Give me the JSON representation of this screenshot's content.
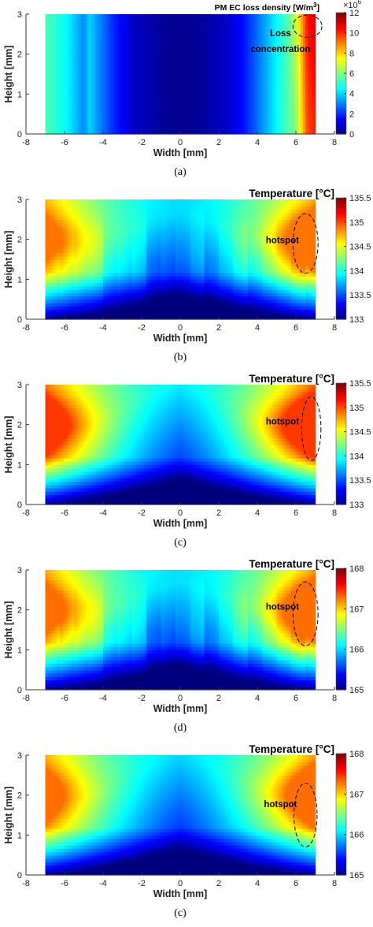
{
  "colors": {
    "colormap": [
      "#00007f",
      "#0000ff",
      "#007fff",
      "#00ffff",
      "#7fff7f",
      "#ffff00",
      "#ff7f00",
      "#ff0000",
      "#7f0000"
    ]
  },
  "chart_data": [
    {
      "type": "heatmap",
      "caption": "(a)",
      "title": "PM EC loss density [W/m",
      "title_sup": "3",
      "title_end": "]",
      "xlabel": "Width [mm]",
      "ylabel": "Height [mm]",
      "xlim": [
        -8,
        8
      ],
      "ylim": [
        0,
        3
      ],
      "xticks": [
        -8,
        -6,
        -4,
        -2,
        0,
        2,
        4,
        6,
        8
      ],
      "yticks": [
        0,
        1,
        2,
        3
      ],
      "data_extent_x": [
        -7,
        7
      ],
      "colorbar": {
        "min": 0,
        "max": 12,
        "ticks": [
          0,
          2,
          4,
          6,
          8,
          10,
          12
        ],
        "exponent_label": "×10",
        "exponent_sup": "6"
      },
      "field": {
        "kind": "lateral",
        "x_profile": [
          -7,
          -6,
          -5.5,
          -5,
          -4.7,
          -4.3,
          -3.5,
          -2.5,
          -1,
          0,
          1,
          2.5,
          3.3,
          4,
          4.5,
          5,
          5.5,
          6,
          6.3,
          6.6,
          7
        ],
        "v_profile": [
          5.4,
          4.6,
          3.9,
          3.1,
          4.0,
          3.3,
          2.0,
          0.9,
          0.3,
          0.2,
          0.3,
          0.9,
          1.7,
          2.8,
          3.6,
          4.5,
          5.3,
          6.4,
          8.2,
          10.0,
          10.5
        ]
      },
      "annotations": [
        {
          "text": "Loss",
          "x": 5.2,
          "y": 2.45
        },
        {
          "text": "concentration",
          "x": 5.2,
          "y": 2.05
        }
      ],
      "ellipse": {
        "cx": 6.6,
        "cy": 2.7,
        "rx": 0.75,
        "ry": 0.28
      }
    },
    {
      "type": "heatmap",
      "caption": "(b)",
      "title": "Temperature [°C]",
      "xlabel": "Width [mm]",
      "ylabel": "Height [mm]",
      "xlim": [
        -8,
        8
      ],
      "ylim": [
        0,
        3
      ],
      "xticks": [
        -8,
        -6,
        -4,
        -2,
        0,
        2,
        4,
        6,
        8
      ],
      "yticks": [
        0,
        1,
        2,
        3
      ],
      "data_extent_x": [
        -7,
        7
      ],
      "colorbar": {
        "min": 133,
        "max": 135.5,
        "ticks": [
          133,
          133.5,
          134,
          134.5,
          135,
          135.5
        ]
      },
      "field": {
        "kind": "thermal",
        "base": 133.0,
        "span": 1.9,
        "edge_weight": 1.0,
        "center_rise": 1.1,
        "noise": 0.12,
        "hot_left": 0.35,
        "hot_right": 0.55
      },
      "annotations": [
        {
          "text": "hotspot",
          "x": 5.3,
          "y": 1.9
        }
      ],
      "ellipse": {
        "cx": 6.5,
        "cy": 1.9,
        "rx": 0.65,
        "ry": 0.75
      }
    },
    {
      "type": "heatmap",
      "caption": "(c)",
      "title": "Temperature [°C]",
      "xlabel": "Width [mm]",
      "ylabel": "Height [mm]",
      "xlim": [
        -8,
        8
      ],
      "ylim": [
        0,
        3
      ],
      "xticks": [
        -8,
        -6,
        -4,
        -2,
        0,
        2,
        4,
        6,
        8
      ],
      "yticks": [
        0,
        1,
        2,
        3
      ],
      "data_extent_x": [
        -7,
        7
      ],
      "colorbar": {
        "min": 133,
        "max": 135.5,
        "ticks": [
          133,
          133.5,
          134,
          134.5,
          135,
          135.5
        ]
      },
      "field": {
        "kind": "thermal",
        "base": 133.0,
        "span": 2.05,
        "edge_weight": 1.0,
        "center_rise": 1.5,
        "noise": 0.0,
        "hot_left": 0.45,
        "hot_right": 0.65
      },
      "annotations": [
        {
          "text": "hotspot",
          "x": 5.3,
          "y": 2.0
        }
      ],
      "ellipse": {
        "cx": 6.8,
        "cy": 1.9,
        "rx": 0.5,
        "ry": 0.8
      }
    },
    {
      "type": "heatmap",
      "caption": "(d)",
      "title": "Temperature [°C]",
      "xlabel": "Width [mm]",
      "ylabel": "Height [mm]",
      "xlim": [
        -8,
        8
      ],
      "ylim": [
        0,
        3
      ],
      "xticks": [
        -8,
        -6,
        -4,
        -2,
        0,
        2,
        4,
        6,
        8
      ],
      "yticks": [
        0,
        1,
        2,
        3
      ],
      "data_extent_x": [
        -7,
        7
      ],
      "colorbar": {
        "min": 165,
        "max": 168,
        "ticks": [
          165,
          166,
          167,
          168
        ]
      },
      "field": {
        "kind": "thermal",
        "base": 165.0,
        "span": 2.3,
        "edge_weight": 1.0,
        "center_rise": 1.1,
        "noise": 0.14,
        "hot_left": 0.4,
        "hot_right": 0.6
      },
      "annotations": [
        {
          "text": "hotspot",
          "x": 5.3,
          "y": 2.0
        }
      ],
      "ellipse": {
        "cx": 6.5,
        "cy": 1.9,
        "rx": 0.65,
        "ry": 0.8
      }
    },
    {
      "type": "heatmap",
      "caption": "(c)",
      "title": "Temperature [°C]",
      "xlabel": "Width [mm]",
      "ylabel": "Height [mm]",
      "xlim": [
        -8,
        8
      ],
      "ylim": [
        0,
        3
      ],
      "xticks": [
        -8,
        -6,
        -4,
        -2,
        0,
        2,
        4,
        6,
        8
      ],
      "yticks": [
        0,
        1,
        2,
        3
      ],
      "data_extent_x": [
        -7,
        7
      ],
      "colorbar": {
        "min": 165,
        "max": 168,
        "ticks": [
          165,
          166,
          167,
          168
        ]
      },
      "field": {
        "kind": "thermal",
        "base": 165.0,
        "span": 2.3,
        "edge_weight": 1.0,
        "center_rise": 1.5,
        "noise": 0.0,
        "hot_left": 0.35,
        "hot_right": 0.55
      },
      "annotations": [
        {
          "text": "hotspot",
          "x": 5.2,
          "y": 1.7
        }
      ],
      "ellipse": {
        "cx": 6.5,
        "cy": 1.5,
        "rx": 0.6,
        "ry": 0.8
      }
    }
  ]
}
